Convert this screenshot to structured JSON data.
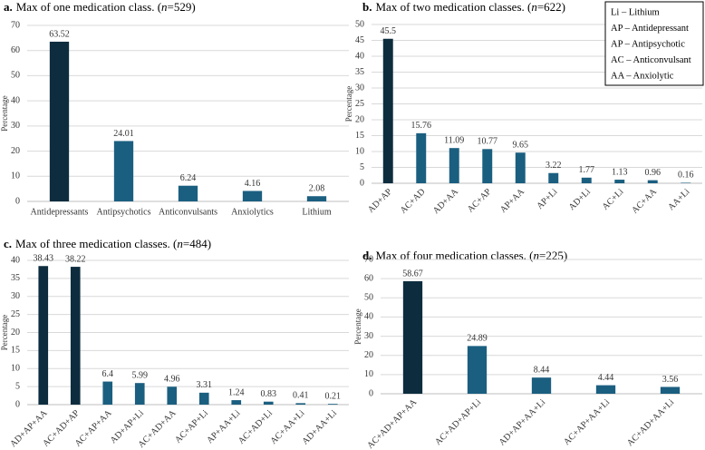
{
  "chart_data": [
    {
      "type": "bar",
      "panel": "a.",
      "title": "Max of one medication class. (",
      "title_italic": "n",
      "title_end": "=529)",
      "ylabel": "Percentage",
      "categories": [
        "Antidepressants",
        "Antipsychotics",
        "Anticonvulsants",
        "Anxiolytics",
        "Lithium"
      ],
      "values": [
        63.52,
        24.01,
        6.24,
        4.16,
        2.08
      ],
      "colors": [
        "#0d2d3f",
        "#1b5f80",
        "#1b5f80",
        "#1b5f80",
        "#1b5f80"
      ],
      "ylim": [
        0,
        70
      ],
      "yticks": [
        0,
        10,
        20,
        30,
        40,
        50,
        60,
        70
      ],
      "grid": true,
      "rotate_labels": false
    },
    {
      "type": "bar",
      "panel": "b.",
      "title": "Max of two medication classes. (",
      "title_italic": "n",
      "title_end": "=622)",
      "ylabel": "Percentage",
      "categories": [
        "AD+AP",
        "AC+AD",
        "AD+AA",
        "AC+AP",
        "AP+AA",
        "AP+Li",
        "AD+Li",
        "AC+Li",
        "AC+AA",
        "AA+Li"
      ],
      "values": [
        45.5,
        15.76,
        11.09,
        10.77,
        9.65,
        3.22,
        1.77,
        1.13,
        0.96,
        0.16
      ],
      "colors": [
        "#0d2d3f",
        "#1b5f80",
        "#1b5f80",
        "#1b5f80",
        "#1b5f80",
        "#1b5f80",
        "#1b5f80",
        "#1b5f80",
        "#1b5f80",
        "#1b5f80"
      ],
      "ylim": [
        0,
        50
      ],
      "yticks": [
        0,
        5,
        10,
        15,
        20,
        25,
        30,
        35,
        40,
        45,
        50
      ],
      "grid": true,
      "rotate_labels": true,
      "annotations": [
        "Li – Lithium",
        "AP – Antidepressant",
        "AP – Antipsychotic",
        "AC – Anticonvulsant",
        "AA – Anxiolytic"
      ]
    },
    {
      "type": "bar",
      "panel": "c.",
      "title": "Max of three medication classes. (",
      "title_italic": "n",
      "title_end": "=484)",
      "ylabel": "Percentage",
      "categories": [
        "AD+AP+AA",
        "AC+AD+AP",
        "AC+AP+AA",
        "AD+AP+Li",
        "AC+AD+AA",
        "AC+AP+Li",
        "AP+AA+Li",
        "AC+AD+Li",
        "AC+AA+Li",
        "AD+AA+Li"
      ],
      "values": [
        38.43,
        38.22,
        6.4,
        5.99,
        4.96,
        3.31,
        1.24,
        0.83,
        0.41,
        0.21
      ],
      "colors": [
        "#0d2d3f",
        "#0d2d3f",
        "#1b5f80",
        "#1b5f80",
        "#1b5f80",
        "#1b5f80",
        "#1b5f80",
        "#1b5f80",
        "#1b5f80",
        "#1b5f80"
      ],
      "ylim": [
        0,
        40
      ],
      "yticks": [
        0,
        5,
        10,
        15,
        20,
        25,
        30,
        35,
        40
      ],
      "grid": true,
      "rotate_labels": true
    },
    {
      "type": "bar",
      "panel": "d.",
      "title": "Max of four medication classes. (",
      "title_italic": "n",
      "title_end": "=225)",
      "ylabel": "Percentage",
      "categories": [
        "AC+AD+AP+AA",
        "AC+AD+AP+Li",
        "AD+AP+AA+Li",
        "AC+AP+AA+Li",
        "AC+AD+AA+Li"
      ],
      "values": [
        58.67,
        24.89,
        8.44,
        4.44,
        3.56
      ],
      "colors": [
        "#0d2d3f",
        "#1b5f80",
        "#1b5f80",
        "#1b5f80",
        "#1b5f80"
      ],
      "ylim": [
        0,
        70
      ],
      "yticks": [
        0,
        10,
        20,
        30,
        40,
        50,
        60,
        70
      ],
      "grid": true,
      "rotate_labels": true
    }
  ]
}
